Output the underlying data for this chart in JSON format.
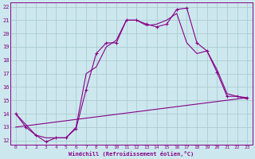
{
  "xlabel": "Windchill (Refroidissement éolien,°C)",
  "bg_color": "#cce8ee",
  "grid_color": "#aaccd0",
  "line_color": "#880088",
  "xlim": [
    -0.5,
    23.5
  ],
  "ylim": [
    11.7,
    22.3
  ],
  "yticks": [
    12,
    13,
    14,
    15,
    16,
    17,
    18,
    19,
    20,
    21,
    22
  ],
  "xticks": [
    0,
    1,
    2,
    3,
    4,
    5,
    6,
    7,
    8,
    9,
    10,
    11,
    12,
    13,
    14,
    15,
    16,
    17,
    18,
    19,
    20,
    21,
    22,
    23
  ],
  "line1_x": [
    0,
    1,
    2,
    3,
    4,
    5,
    6,
    7,
    8,
    9,
    10,
    11,
    12,
    13,
    14,
    15,
    16,
    17,
    18,
    19,
    20,
    21,
    22,
    23
  ],
  "line1_y": [
    14.0,
    13.0,
    12.4,
    11.9,
    12.2,
    12.2,
    12.9,
    15.8,
    18.5,
    19.3,
    19.3,
    21.0,
    21.0,
    20.7,
    20.5,
    20.7,
    21.8,
    21.9,
    19.3,
    18.7,
    17.1,
    15.3,
    15.3,
    15.2
  ],
  "line2_x": [
    0,
    2,
    3,
    4,
    5,
    6,
    7,
    8,
    9,
    10,
    11,
    12,
    13,
    14,
    15,
    16,
    17,
    18,
    19,
    20,
    21,
    22,
    23
  ],
  "line2_y": [
    14.0,
    12.4,
    12.2,
    12.2,
    12.2,
    13.0,
    17.0,
    17.5,
    19.0,
    19.5,
    21.0,
    21.0,
    20.6,
    20.7,
    21.0,
    21.5,
    19.3,
    18.5,
    18.7,
    17.3,
    15.5,
    15.3,
    15.1
  ],
  "line3_x": [
    0,
    23
  ],
  "line3_y": [
    13.0,
    15.2
  ]
}
